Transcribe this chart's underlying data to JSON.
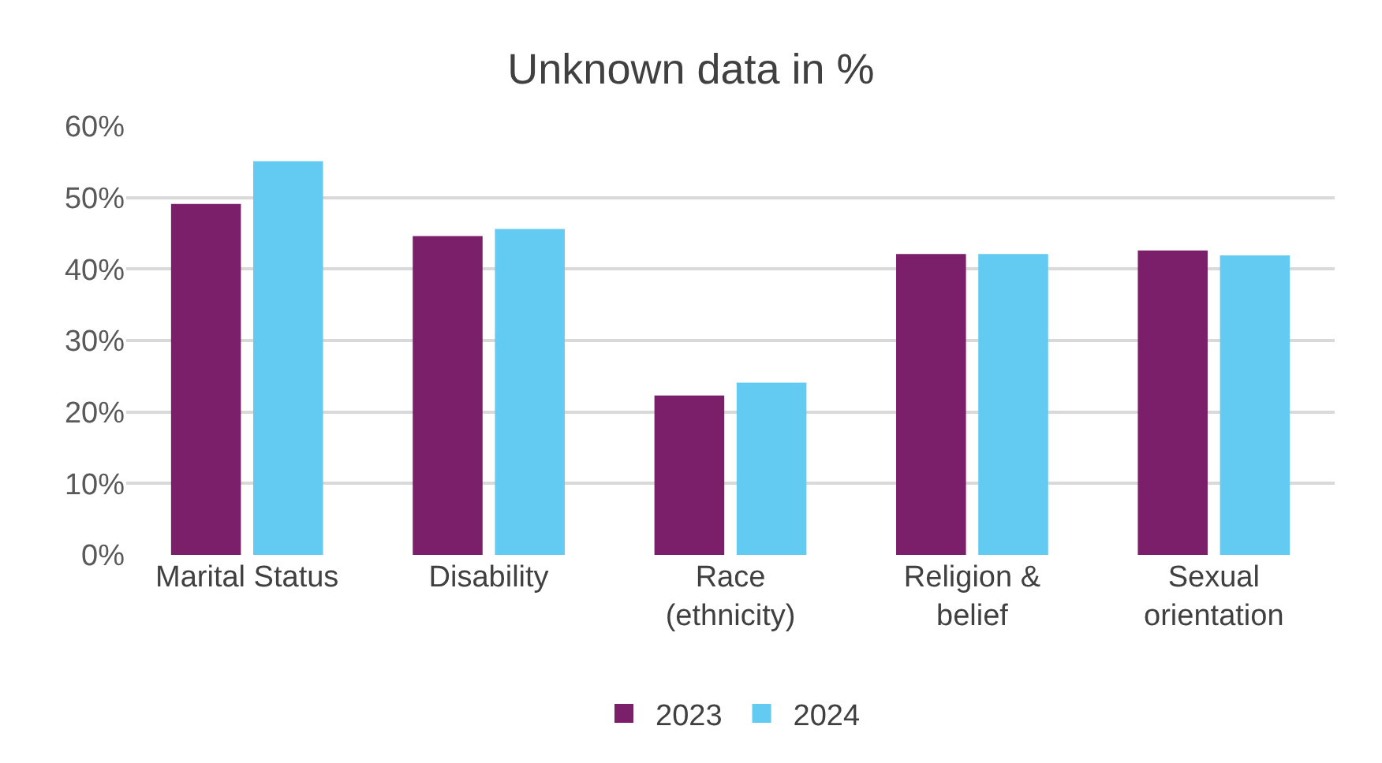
{
  "chart_data": {
    "type": "bar",
    "title": "Unknown data in %",
    "categories": [
      "Marital Status",
      "Disability",
      "Race\n(ethnicity)",
      "Religion &\nbelief",
      "Sexual\norientation"
    ],
    "series": [
      {
        "name": "2023",
        "color": "#7b1f6a",
        "values": [
          49.1,
          44.6,
          22.3,
          42.1,
          42.6
        ]
      },
      {
        "name": "2024",
        "color": "#63caf2",
        "values": [
          55.1,
          45.6,
          24.1,
          42.1,
          41.9
        ]
      }
    ],
    "ylim": [
      0,
      60
    ],
    "yticks": [
      {
        "value": 0,
        "label": "0%"
      },
      {
        "value": 10,
        "label": "10%"
      },
      {
        "value": 20,
        "label": "20%"
      },
      {
        "value": 30,
        "label": "30%"
      },
      {
        "value": 40,
        "label": "40%"
      },
      {
        "value": 50,
        "label": "50%"
      },
      {
        "value": 60,
        "label": "60%"
      }
    ],
    "grid": "y",
    "legend": "bottom"
  }
}
